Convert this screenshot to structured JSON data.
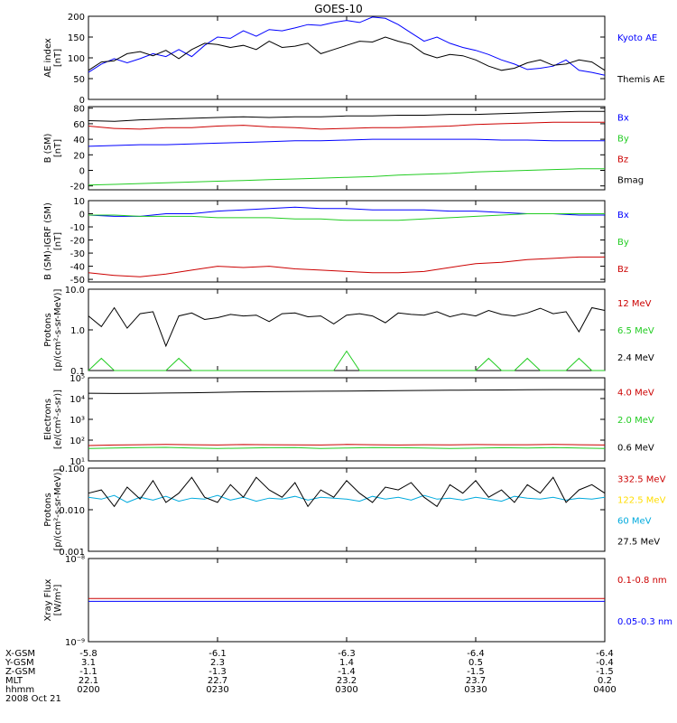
{
  "title": "GOES-10",
  "colors": {
    "black": "#000000",
    "red": "#cc0000",
    "green": "#22cc22",
    "blue": "#0000ff",
    "cyan": "#00aadd",
    "yellow": "#ffdd00"
  },
  "chart_data": [
    {
      "type": "line",
      "id": "ae",
      "ylabel": [
        "AE index",
        "[nT]"
      ],
      "ylim": [
        0,
        200
      ],
      "yticks": [
        0,
        50,
        100,
        150,
        200
      ],
      "ytick_labels": [
        "0",
        "50",
        "100",
        "150",
        "200"
      ],
      "x": [
        0,
        3,
        6,
        9,
        12,
        15,
        18,
        21,
        24,
        27,
        30,
        33,
        36,
        39,
        42,
        45,
        48,
        51,
        54,
        57,
        60,
        63,
        66,
        69,
        72,
        75,
        78,
        81,
        84,
        87,
        90,
        93,
        96,
        99,
        102,
        105,
        108,
        111,
        114,
        117,
        120
      ],
      "series": [
        {
          "name": "Kyoto AE",
          "color": "blue",
          "values": [
            65,
            85,
            98,
            88,
            98,
            110,
            103,
            120,
            103,
            130,
            150,
            147,
            165,
            152,
            168,
            165,
            172,
            180,
            178,
            185,
            190,
            185,
            198,
            195,
            180,
            160,
            140,
            150,
            135,
            125,
            118,
            108,
            95,
            85,
            72,
            75,
            80,
            95,
            70,
            65,
            58
          ]
        },
        {
          "name": "Themis AE",
          "color": "black",
          "values": [
            70,
            90,
            93,
            110,
            115,
            105,
            118,
            98,
            120,
            135,
            132,
            125,
            130,
            120,
            140,
            125,
            128,
            135,
            110,
            120,
            130,
            140,
            138,
            150,
            140,
            132,
            110,
            100,
            108,
            105,
            95,
            80,
            70,
            75,
            88,
            95,
            82,
            85,
            95,
            90,
            70
          ]
        }
      ]
    },
    {
      "type": "line",
      "id": "bsm",
      "ylabel": [
        "B (SM)",
        "[nT]"
      ],
      "ylim": [
        -25,
        82
      ],
      "yticks": [
        -20,
        0,
        20,
        40,
        60,
        80
      ],
      "ytick_labels": [
        "-20",
        "0",
        "20",
        "40",
        "60",
        "80"
      ],
      "x": [
        0,
        6,
        12,
        18,
        24,
        30,
        36,
        42,
        48,
        54,
        60,
        66,
        72,
        78,
        84,
        90,
        96,
        102,
        108,
        114,
        120
      ],
      "series": [
        {
          "name": "Bx",
          "color": "blue",
          "values": [
            31,
            32,
            33,
            33,
            34,
            35,
            36,
            37,
            38,
            38,
            39,
            40,
            40,
            40,
            40,
            40,
            39,
            39,
            38,
            38,
            38
          ]
        },
        {
          "name": "By",
          "color": "green",
          "values": [
            -19,
            -18,
            -17,
            -16,
            -15,
            -14,
            -13,
            -12,
            -11,
            -10,
            -9,
            -8,
            -6,
            -5,
            -4,
            -2,
            -1,
            0,
            1,
            2,
            2
          ]
        },
        {
          "name": "Bz",
          "color": "red",
          "values": [
            57,
            54,
            53,
            55,
            55,
            57,
            58,
            56,
            55,
            53,
            54,
            55,
            55,
            56,
            57,
            59,
            60,
            61,
            62,
            62,
            62
          ]
        },
        {
          "name": "Bmag",
          "color": "black",
          "values": [
            64,
            63,
            65,
            66,
            67,
            68,
            69,
            68,
            69,
            69,
            70,
            70,
            71,
            71,
            72,
            72,
            73,
            74,
            75,
            76,
            76
          ]
        }
      ]
    },
    {
      "type": "line",
      "id": "dbsm",
      "ylabel": [
        "B (SM)-IGRF (SM)",
        "[nT]"
      ],
      "ylim": [
        -52,
        10
      ],
      "yticks": [
        10,
        0,
        -10,
        -20,
        -30,
        -40,
        -50
      ],
      "ytick_labels": [
        "10",
        "0",
        "-10",
        "-20",
        "-30",
        "-40",
        "-50"
      ],
      "x": [
        0,
        6,
        12,
        18,
        24,
        30,
        36,
        42,
        48,
        54,
        60,
        66,
        72,
        78,
        84,
        90,
        96,
        102,
        108,
        114,
        120
      ],
      "series": [
        {
          "name": "Bx",
          "color": "blue",
          "values": [
            -1,
            -2,
            -2,
            0,
            0,
            2,
            3,
            4,
            5,
            4,
            4,
            3,
            3,
            3,
            2,
            2,
            1,
            0,
            0,
            -1,
            -1
          ]
        },
        {
          "name": "By",
          "color": "green",
          "values": [
            -1,
            -1,
            -2,
            -2,
            -2,
            -3,
            -3,
            -3,
            -4,
            -4,
            -5,
            -5,
            -5,
            -4,
            -3,
            -2,
            -1,
            0,
            0,
            0,
            0
          ]
        },
        {
          "name": "Bz",
          "color": "red",
          "values": [
            -45,
            -47,
            -48,
            -46,
            -43,
            -40,
            -41,
            -40,
            -42,
            -43,
            -44,
            -45,
            -45,
            -44,
            -41,
            -38,
            -37,
            -35,
            -34,
            -33,
            -33
          ]
        }
      ]
    },
    {
      "type": "line",
      "id": "protons",
      "ylabel": [
        "Protons",
        "[p/(cm²-s-sr-MeV)]"
      ],
      "log": true,
      "ylim": [
        0.1,
        10
      ],
      "yticks": [
        0.1,
        1,
        10
      ],
      "ytick_labels": [
        "0.1",
        "1.0",
        "10.0"
      ],
      "x": [
        0,
        3,
        6,
        9,
        12,
        15,
        18,
        21,
        24,
        27,
        30,
        33,
        36,
        39,
        42,
        45,
        48,
        51,
        54,
        57,
        60,
        63,
        66,
        69,
        72,
        75,
        78,
        81,
        84,
        87,
        90,
        93,
        96,
        99,
        102,
        105,
        108,
        111,
        114,
        117,
        120
      ],
      "series": [
        {
          "name": "12 MeV",
          "color": "red",
          "values": [
            null,
            null,
            null,
            null,
            null,
            null,
            null,
            null,
            null,
            null,
            null,
            null,
            null,
            null,
            null,
            null,
            null,
            null,
            null,
            null,
            null,
            null,
            null,
            null,
            null,
            null,
            null,
            null,
            null,
            null,
            null,
            null,
            null,
            null,
            null,
            null,
            null,
            null,
            null,
            null,
            null
          ]
        },
        {
          "name": "6.5 MeV",
          "color": "green",
          "values": [
            0.1,
            0.2,
            0.1,
            0.1,
            0.1,
            0.1,
            0.1,
            0.2,
            0.1,
            0.1,
            0.1,
            0.1,
            0.1,
            0.1,
            0.1,
            0.1,
            0.1,
            0.1,
            0.1,
            0.1,
            0.3,
            0.1,
            0.1,
            0.1,
            0.1,
            0.1,
            0.1,
            0.1,
            0.1,
            0.1,
            0.1,
            0.2,
            0.1,
            0.1,
            0.2,
            0.1,
            0.1,
            0.1,
            0.2,
            0.1,
            0.1
          ]
        },
        {
          "name": "2.4 MeV",
          "color": "black",
          "values": [
            2.2,
            1.2,
            3.5,
            1.1,
            2.5,
            2.8,
            0.4,
            2.2,
            2.6,
            1.8,
            2.0,
            2.4,
            2.2,
            2.3,
            1.6,
            2.5,
            2.6,
            2.1,
            2.2,
            1.4,
            2.3,
            2.5,
            2.2,
            1.5,
            2.6,
            2.4,
            2.3,
            2.8,
            2.1,
            2.5,
            2.2,
            3.0,
            2.4,
            2.2,
            2.6,
            3.4,
            2.5,
            2.8,
            0.9,
            3.5,
            3.0
          ]
        }
      ]
    },
    {
      "type": "line",
      "id": "electrons",
      "ylabel": [
        "Electrons",
        "[e/(cm²-s-sr)]"
      ],
      "log": true,
      "ylim": [
        10,
        100000
      ],
      "yticks": [
        10,
        100,
        1000,
        10000,
        100000
      ],
      "ytick_labels": [
        "10¹",
        "10²",
        "10³",
        "10⁴",
        "10⁵"
      ],
      "x": [
        0,
        6,
        12,
        18,
        24,
        30,
        36,
        42,
        48,
        54,
        60,
        66,
        72,
        78,
        84,
        90,
        96,
        102,
        108,
        114,
        120
      ],
      "series": [
        {
          "name": "4.0 MeV",
          "color": "red",
          "values": [
            55,
            58,
            60,
            62,
            60,
            58,
            61,
            60,
            59,
            58,
            62,
            60,
            58,
            60,
            59,
            61,
            60,
            60,
            62,
            60,
            58
          ]
        },
        {
          "name": "2.0 MeV",
          "color": "green",
          "values": [
            40,
            42,
            44,
            45,
            42,
            40,
            41,
            43,
            44,
            40,
            42,
            44,
            43,
            42,
            40,
            41,
            43,
            42,
            44,
            42,
            40
          ]
        },
        {
          "name": "0.6 MeV",
          "color": "black",
          "values": [
            18000,
            17500,
            17800,
            18500,
            19000,
            20000,
            21000,
            21500,
            22000,
            22500,
            23000,
            23500,
            24000,
            24500,
            25000,
            25500,
            26000,
            26500,
            27000,
            27000,
            27000
          ]
        }
      ]
    },
    {
      "type": "line",
      "id": "hiprotons",
      "ylabel": [
        "Protons",
        "[p/(cm²-s-sr-MeV)]"
      ],
      "log": true,
      "ylim": [
        0.001,
        0.1
      ],
      "yticks": [
        0.001,
        0.01,
        0.1
      ],
      "ytick_labels": [
        "0.001",
        "0.010",
        "0.100"
      ],
      "x": [
        0,
        3,
        6,
        9,
        12,
        15,
        18,
        21,
        24,
        27,
        30,
        33,
        36,
        39,
        42,
        45,
        48,
        51,
        54,
        57,
        60,
        63,
        66,
        69,
        72,
        75,
        78,
        81,
        84,
        87,
        90,
        93,
        96,
        99,
        102,
        105,
        108,
        111,
        114,
        117,
        120
      ],
      "series": [
        {
          "name": "332.5 MeV",
          "color": "red",
          "values": [
            null,
            null,
            null,
            null,
            null,
            null,
            null,
            null,
            null,
            null,
            null,
            null,
            null,
            null,
            null,
            null,
            null,
            null,
            null,
            null,
            null,
            null,
            null,
            null,
            null,
            null,
            null,
            null,
            null,
            null,
            null,
            null,
            null,
            null,
            null,
            null,
            null,
            null,
            null,
            null,
            null
          ]
        },
        {
          "name": "122.5 MeV",
          "color": "yellow",
          "values": [
            null,
            null,
            null,
            null,
            null,
            null,
            null,
            null,
            null,
            null,
            null,
            null,
            null,
            null,
            null,
            null,
            null,
            null,
            null,
            null,
            null,
            null,
            null,
            null,
            null,
            null,
            null,
            null,
            null,
            null,
            null,
            null,
            null,
            null,
            null,
            null,
            null,
            null,
            null,
            null,
            null
          ]
        },
        {
          "name": "60 MeV",
          "color": "cyan",
          "values": [
            0.02,
            0.018,
            0.022,
            0.015,
            0.02,
            0.017,
            0.021,
            0.016,
            0.019,
            0.018,
            0.022,
            0.017,
            0.02,
            0.016,
            0.019,
            0.018,
            0.021,
            0.017,
            0.02,
            0.019,
            0.018,
            0.016,
            0.021,
            0.018,
            0.02,
            0.017,
            0.022,
            0.018,
            0.019,
            0.017,
            0.02,
            0.018,
            0.016,
            0.021,
            0.019,
            0.018,
            0.02,
            0.017,
            0.019,
            0.018,
            0.02
          ]
        },
        {
          "name": "27.5 MeV",
          "color": "black",
          "values": [
            0.025,
            0.03,
            0.012,
            0.035,
            0.018,
            0.05,
            0.015,
            0.025,
            0.06,
            0.02,
            0.015,
            0.04,
            0.02,
            0.06,
            0.03,
            0.02,
            0.045,
            0.012,
            0.03,
            0.02,
            0.05,
            0.025,
            0.015,
            0.035,
            0.03,
            0.045,
            0.02,
            0.012,
            0.04,
            0.025,
            0.05,
            0.02,
            0.03,
            0.015,
            0.04,
            0.025,
            0.06,
            0.015,
            0.03,
            0.04,
            0.025
          ]
        }
      ]
    },
    {
      "type": "line",
      "id": "xray",
      "ylabel": [
        "Xray Flux",
        "[W/m²]"
      ],
      "log": true,
      "ylim": [
        1e-09,
        1e-08
      ],
      "yticks": [
        1e-09,
        1e-08
      ],
      "ytick_labels": [
        "10⁻⁹",
        "10⁻⁸"
      ],
      "x": [
        0,
        120
      ],
      "series": [
        {
          "name": "0.1-0.8 nm",
          "color": "red",
          "values": [
            3.3e-09,
            3.3e-09
          ]
        },
        {
          "name": "0.05-0.3 nm",
          "color": "blue",
          "values": [
            3.05e-09,
            3.05e-09
          ]
        }
      ]
    }
  ],
  "xaxis": {
    "ticks": [
      0,
      30,
      60,
      90,
      120
    ],
    "rows": [
      {
        "label": "X-GSM",
        "values": [
          "-5.8",
          "-6.1",
          "-6.3",
          "-6.4",
          "-6.4"
        ]
      },
      {
        "label": "Y-GSM",
        "values": [
          "3.1",
          "2.3",
          "1.4",
          "0.5",
          "-0.4"
        ]
      },
      {
        "label": "Z-GSM",
        "values": [
          "-1.1",
          "-1.3",
          "-1.4",
          "-1.5",
          "-1.5"
        ]
      },
      {
        "label": "MLT",
        "values": [
          "22.1",
          "22.7",
          "23.2",
          "23.7",
          "0.2"
        ]
      },
      {
        "label": "hhmm",
        "values": [
          "0200",
          "0230",
          "0300",
          "0330",
          "0400"
        ]
      }
    ],
    "date": "2008 Oct 21"
  }
}
